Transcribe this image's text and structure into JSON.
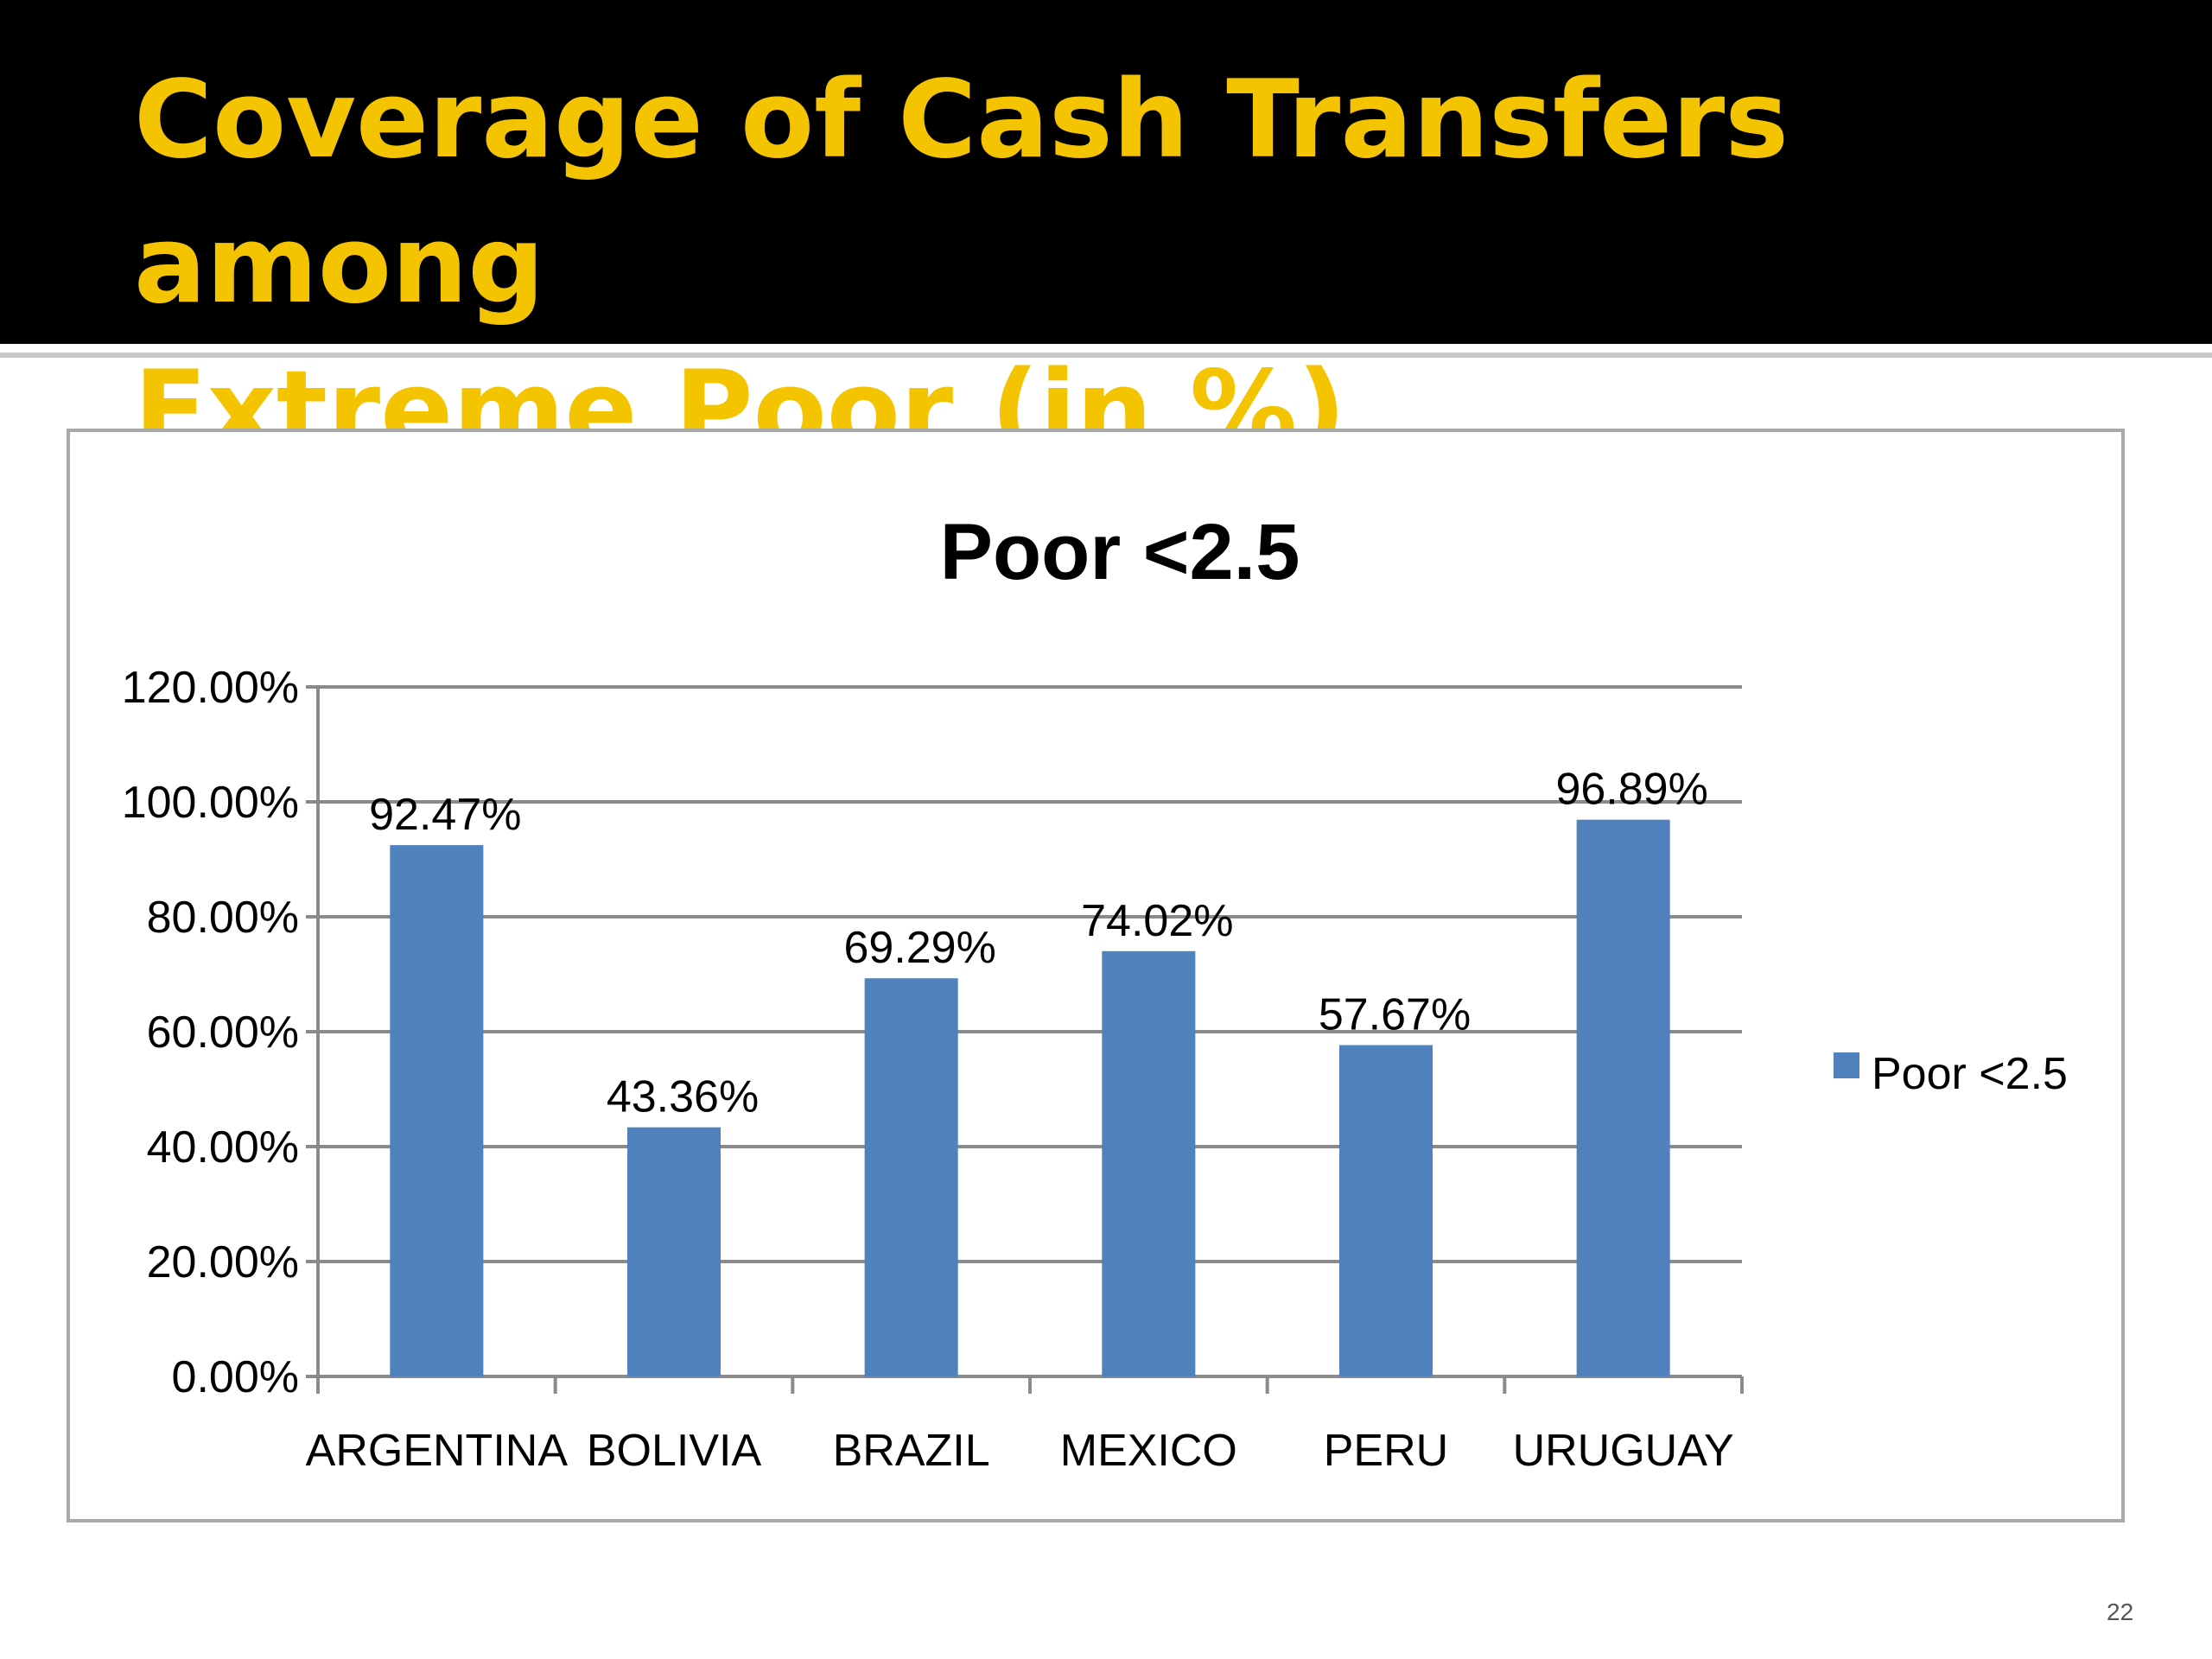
{
  "slide": {
    "title_line1": "Coverage of Cash Transfers among",
    "title_line2": "Extreme Poor (in %)",
    "page_number": "22"
  },
  "colors": {
    "header_bg": "#000000",
    "title_text": "#f5c400",
    "bar_fill": "#4f81bd"
  },
  "chart_data": {
    "type": "bar",
    "title": "Poor <2.5",
    "categories": [
      "ARGENTINA",
      "BOLIVIA",
      "BRAZIL",
      "MEXICO",
      "PERU",
      "URUGUAY"
    ],
    "series": [
      {
        "name": "Poor <2.5",
        "values": [
          92.47,
          43.36,
          69.29,
          74.02,
          57.67,
          96.89
        ],
        "data_labels": [
          "92.47%",
          "43.36%",
          "69.29%",
          "74.02%",
          "57.67%",
          "96.89%"
        ]
      }
    ],
    "ylim": [
      0,
      120
    ],
    "yticks": [
      0,
      20,
      40,
      60,
      80,
      100,
      120
    ],
    "ytick_labels": [
      "0.00%",
      "20.00%",
      "40.00%",
      "60.00%",
      "80.00%",
      "100.00%",
      "120.00%"
    ],
    "grid": true,
    "legend": "right"
  }
}
